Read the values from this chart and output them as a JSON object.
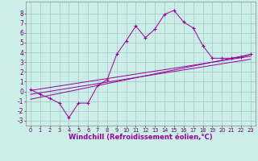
{
  "background_color": "#cceee8",
  "grid_color": "#aacccc",
  "line_color": "#990099",
  "marker": "+",
  "xlim": [
    -0.5,
    23.5
  ],
  "ylim": [
    -3.5,
    9.2
  ],
  "xlabel": "Windchill (Refroidissement éolien,°C)",
  "xlabel_fontsize": 6.0,
  "xtick_fontsize": 4.8,
  "ytick_fontsize": 5.5,
  "xtick_labels": [
    "0",
    "1",
    "2",
    "3",
    "4",
    "5",
    "6",
    "7",
    "8",
    "9",
    "10",
    "11",
    "12",
    "13",
    "14",
    "15",
    "16",
    "17",
    "18",
    "19",
    "20",
    "21",
    "22",
    "23"
  ],
  "ytick_labels": [
    "-3",
    "-2",
    "-1",
    "0",
    "1",
    "2",
    "3",
    "4",
    "5",
    "6",
    "7",
    "8"
  ],
  "yticks": [
    -3,
    -2,
    -1,
    0,
    1,
    2,
    3,
    4,
    5,
    6,
    7,
    8
  ],
  "series1_x": [
    0,
    1,
    2,
    3,
    4,
    5,
    6,
    7,
    8,
    9,
    10,
    11,
    12,
    13,
    14,
    15,
    16,
    17,
    18,
    19,
    20,
    21,
    22,
    23
  ],
  "series1_y": [
    0.2,
    -0.3,
    -0.7,
    -1.2,
    -2.7,
    -1.2,
    -1.2,
    0.6,
    1.2,
    3.8,
    5.2,
    6.7,
    5.5,
    6.4,
    7.9,
    8.3,
    7.1,
    6.5,
    4.7,
    3.4,
    3.4,
    3.4,
    3.5,
    3.8
  ],
  "series2_x": [
    0,
    23
  ],
  "series2_y": [
    -0.8,
    3.8
  ],
  "series3_x": [
    0,
    23
  ],
  "series3_y": [
    -0.3,
    3.3
  ],
  "series4_x": [
    0,
    23
  ],
  "series4_y": [
    0.1,
    3.6
  ]
}
